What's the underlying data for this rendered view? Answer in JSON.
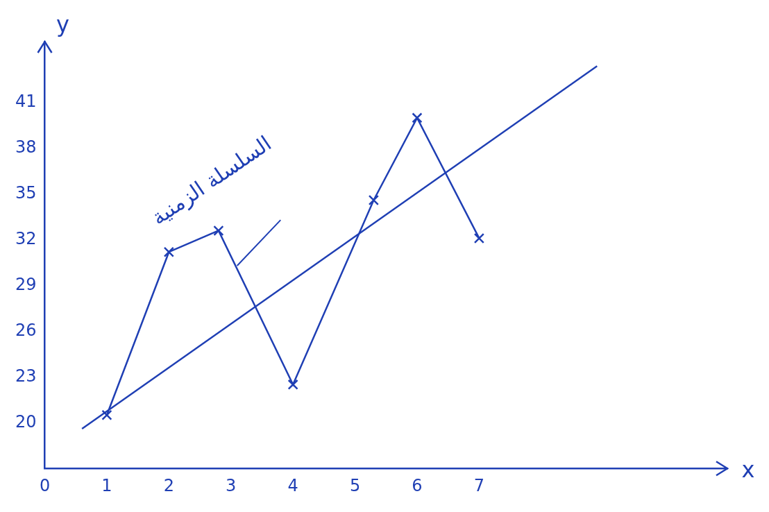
{
  "chart_data": {
    "type": "line",
    "x_label": "x",
    "y_label": "y",
    "annotation": "السلسلة الزمنية",
    "series": [
      {
        "x": [
          1,
          2,
          2.8,
          4,
          5.3,
          6,
          7
        ],
        "values": [
          20.5,
          31.2,
          32.6,
          22.5,
          34.6,
          40,
          32.1
        ],
        "color": "#1f3fb4",
        "marker": "x",
        "line_style": "solid"
      },
      {
        "x": [
          0.6,
          8.9
        ],
        "values": [
          19.6,
          43.4
        ],
        "color": "#1f3fb4",
        "marker": "none",
        "line_style": "solid"
      }
    ],
    "xlim": [
      0,
      11
    ],
    "xticks": [
      0,
      1,
      2,
      3,
      4,
      5,
      6,
      7
    ],
    "ylim": [
      17,
      45
    ],
    "yticks": [
      20,
      23,
      26,
      29,
      32,
      35,
      38,
      41
    ],
    "grid": false
  }
}
